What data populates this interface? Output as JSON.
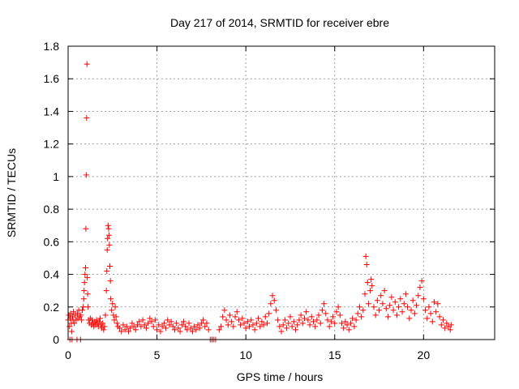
{
  "chart_data": {
    "type": "scatter",
    "title": "Day 217 of 2014, SRMTID for receiver ebre",
    "xlabel": "GPS time / hours",
    "ylabel": "SRMTID / TECUs",
    "xlim": [
      0,
      24
    ],
    "ylim": [
      0,
      1.8
    ],
    "xticks": [
      0,
      5,
      10,
      15,
      20
    ],
    "xtick_labels": [
      "0",
      "5",
      "10",
      "15",
      "20"
    ],
    "yticks": [
      0,
      0.2,
      0.4,
      0.6,
      0.8,
      1,
      1.2,
      1.4,
      1.6,
      1.8
    ],
    "ytick_labels": [
      "0",
      "0.2",
      "0.4",
      "0.6",
      "0.8",
      "1",
      "1.2",
      "1.4",
      "1.6",
      "1.8"
    ],
    "grid": true,
    "marker": "+",
    "marker_color": "#ff0000",
    "series": [
      {
        "name": "SRMTID",
        "points": [
          [
            0.0,
            0.12
          ],
          [
            0.05,
            0.15
          ],
          [
            0.08,
            0.08
          ],
          [
            0.1,
            0.0
          ],
          [
            0.12,
            0.13
          ],
          [
            0.15,
            0.16
          ],
          [
            0.18,
            0.1
          ],
          [
            0.2,
            0.05
          ],
          [
            0.22,
            0.0
          ],
          [
            0.25,
            0.14
          ],
          [
            0.28,
            0.12
          ],
          [
            0.3,
            0.17
          ],
          [
            0.35,
            0.1
          ],
          [
            0.4,
            0.15
          ],
          [
            0.45,
            0.12
          ],
          [
            0.5,
            0.0
          ],
          [
            0.52,
            0.16
          ],
          [
            0.55,
            0.13
          ],
          [
            0.6,
            0.18
          ],
          [
            0.65,
            0.14
          ],
          [
            0.7,
            0.0
          ],
          [
            0.72,
            0.15
          ],
          [
            0.75,
            0.12
          ],
          [
            0.8,
            0.18
          ],
          [
            0.85,
            0.2
          ],
          [
            0.88,
            0.25
          ],
          [
            0.9,
            0.3
          ],
          [
            0.92,
            0.35
          ],
          [
            0.95,
            0.4
          ],
          [
            0.98,
            0.44
          ],
          [
            1.0,
            0.68
          ],
          [
            1.02,
            1.01
          ],
          [
            1.04,
            1.36
          ],
          [
            1.06,
            1.69
          ],
          [
            1.08,
            0.38
          ],
          [
            1.1,
            0.28
          ],
          [
            1.12,
            0.2
          ],
          [
            1.15,
            0.12
          ],
          [
            1.2,
            0.1
          ],
          [
            1.25,
            0.13
          ],
          [
            1.3,
            0.09
          ],
          [
            1.35,
            0.12
          ],
          [
            1.4,
            0.1
          ],
          [
            1.45,
            0.08
          ],
          [
            1.5,
            0.11
          ],
          [
            1.55,
            0.09
          ],
          [
            1.6,
            0.12
          ],
          [
            1.65,
            0.1
          ],
          [
            1.7,
            0.08
          ],
          [
            1.75,
            0.11
          ],
          [
            1.8,
            0.13
          ],
          [
            1.85,
            0.09
          ],
          [
            1.9,
            0.07
          ],
          [
            1.95,
            0.1
          ],
          [
            2.0,
            0.06
          ],
          [
            2.05,
            0.08
          ],
          [
            2.1,
            0.15
          ],
          [
            2.15,
            0.3
          ],
          [
            2.18,
            0.42
          ],
          [
            2.2,
            0.55
          ],
          [
            2.22,
            0.62
          ],
          [
            2.25,
            0.7
          ],
          [
            2.28,
            0.68
          ],
          [
            2.3,
            0.64
          ],
          [
            2.32,
            0.58
          ],
          [
            2.35,
            0.45
          ],
          [
            2.38,
            0.36
          ],
          [
            2.4,
            0.25
          ],
          [
            2.45,
            0.18
          ],
          [
            2.5,
            0.22
          ],
          [
            2.55,
            0.15
          ],
          [
            2.6,
            0.12
          ],
          [
            2.65,
            0.2
          ],
          [
            2.7,
            0.14
          ],
          [
            2.75,
            0.1
          ],
          [
            2.8,
            0.08
          ],
          [
            2.9,
            0.07
          ],
          [
            3.0,
            0.05
          ],
          [
            3.1,
            0.09
          ],
          [
            3.2,
            0.06
          ],
          [
            3.3,
            0.08
          ],
          [
            3.4,
            0.05
          ],
          [
            3.5,
            0.07
          ],
          [
            3.6,
            0.1
          ],
          [
            3.7,
            0.08
          ],
          [
            3.8,
            0.06
          ],
          [
            3.9,
            0.09
          ],
          [
            4.0,
            0.11
          ],
          [
            4.1,
            0.08
          ],
          [
            4.2,
            0.12
          ],
          [
            4.3,
            0.09
          ],
          [
            4.4,
            0.07
          ],
          [
            4.5,
            0.1
          ],
          [
            4.6,
            0.13
          ],
          [
            4.7,
            0.11
          ],
          [
            4.8,
            0.08
          ],
          [
            4.9,
            0.12
          ],
          [
            5.0,
            0.06
          ],
          [
            5.1,
            0.09
          ],
          [
            5.2,
            0.05
          ],
          [
            5.3,
            0.08
          ],
          [
            5.4,
            0.1
          ],
          [
            5.5,
            0.07
          ],
          [
            5.6,
            0.12
          ],
          [
            5.7,
            0.09
          ],
          [
            5.8,
            0.11
          ],
          [
            5.9,
            0.08
          ],
          [
            6.0,
            0.06
          ],
          [
            6.1,
            0.1
          ],
          [
            6.2,
            0.07
          ],
          [
            6.3,
            0.05
          ],
          [
            6.4,
            0.09
          ],
          [
            6.5,
            0.11
          ],
          [
            6.6,
            0.08
          ],
          [
            6.7,
            0.06
          ],
          [
            6.8,
            0.1
          ],
          [
            6.9,
            0.07
          ],
          [
            7.0,
            0.05
          ],
          [
            7.1,
            0.08
          ],
          [
            7.2,
            0.06
          ],
          [
            7.3,
            0.09
          ],
          [
            7.4,
            0.07
          ],
          [
            7.5,
            0.1
          ],
          [
            7.6,
            0.12
          ],
          [
            7.7,
            0.08
          ],
          [
            7.8,
            0.1
          ],
          [
            7.9,
            0.06
          ],
          [
            8.0,
            0.0
          ],
          [
            8.1,
            0.0
          ],
          [
            8.2,
            0.0
          ],
          [
            8.3,
            0.0
          ],
          [
            8.5,
            0.06
          ],
          [
            8.6,
            0.08
          ],
          [
            8.7,
            0.14
          ],
          [
            8.8,
            0.18
          ],
          [
            8.9,
            0.12
          ],
          [
            9.0,
            0.09
          ],
          [
            9.1,
            0.15
          ],
          [
            9.2,
            0.11
          ],
          [
            9.3,
            0.08
          ],
          [
            9.4,
            0.14
          ],
          [
            9.5,
            0.17
          ],
          [
            9.6,
            0.12
          ],
          [
            9.7,
            0.09
          ],
          [
            9.8,
            0.13
          ],
          [
            9.9,
            0.1
          ],
          [
            10.0,
            0.07
          ],
          [
            10.1,
            0.11
          ],
          [
            10.2,
            0.08
          ],
          [
            10.3,
            0.12
          ],
          [
            10.4,
            0.09
          ],
          [
            10.5,
            0.06
          ],
          [
            10.6,
            0.1
          ],
          [
            10.7,
            0.13
          ],
          [
            10.8,
            0.08
          ],
          [
            10.9,
            0.11
          ],
          [
            11.0,
            0.09
          ],
          [
            11.1,
            0.14
          ],
          [
            11.2,
            0.1
          ],
          [
            11.3,
            0.16
          ],
          [
            11.4,
            0.22
          ],
          [
            11.5,
            0.27
          ],
          [
            11.6,
            0.24
          ],
          [
            11.7,
            0.18
          ],
          [
            11.8,
            0.12
          ],
          [
            11.9,
            0.08
          ],
          [
            12.0,
            0.05
          ],
          [
            12.1,
            0.09
          ],
          [
            12.2,
            0.12
          ],
          [
            12.3,
            0.07
          ],
          [
            12.4,
            0.1
          ],
          [
            12.5,
            0.14
          ],
          [
            12.6,
            0.08
          ],
          [
            12.7,
            0.11
          ],
          [
            12.8,
            0.06
          ],
          [
            12.9,
            0.09
          ],
          [
            13.0,
            0.12
          ],
          [
            13.1,
            0.15
          ],
          [
            13.2,
            0.1
          ],
          [
            13.3,
            0.13
          ],
          [
            13.4,
            0.17
          ],
          [
            13.5,
            0.12
          ],
          [
            13.6,
            0.09
          ],
          [
            13.7,
            0.14
          ],
          [
            13.8,
            0.11
          ],
          [
            13.9,
            0.08
          ],
          [
            14.0,
            0.12
          ],
          [
            14.1,
            0.15
          ],
          [
            14.2,
            0.1
          ],
          [
            14.3,
            0.18
          ],
          [
            14.4,
            0.22
          ],
          [
            14.5,
            0.16
          ],
          [
            14.6,
            0.12
          ],
          [
            14.7,
            0.08
          ],
          [
            14.8,
            0.11
          ],
          [
            14.9,
            0.14
          ],
          [
            15.0,
            0.1
          ],
          [
            15.1,
            0.17
          ],
          [
            15.2,
            0.2
          ],
          [
            15.3,
            0.15
          ],
          [
            15.4,
            0.1
          ],
          [
            15.5,
            0.07
          ],
          [
            15.6,
            0.11
          ],
          [
            15.7,
            0.09
          ],
          [
            15.8,
            0.06
          ],
          [
            15.9,
            0.1
          ],
          [
            16.0,
            0.13
          ],
          [
            16.1,
            0.08
          ],
          [
            16.2,
            0.12
          ],
          [
            16.3,
            0.16
          ],
          [
            16.4,
            0.2
          ],
          [
            16.5,
            0.14
          ],
          [
            16.6,
            0.18
          ],
          [
            16.7,
            0.28
          ],
          [
            16.75,
            0.51
          ],
          [
            16.8,
            0.46
          ],
          [
            16.85,
            0.35
          ],
          [
            16.9,
            0.22
          ],
          [
            17.0,
            0.3
          ],
          [
            17.05,
            0.37
          ],
          [
            17.1,
            0.33
          ],
          [
            17.2,
            0.2
          ],
          [
            17.3,
            0.15
          ],
          [
            17.4,
            0.24
          ],
          [
            17.5,
            0.18
          ],
          [
            17.6,
            0.27
          ],
          [
            17.7,
            0.22
          ],
          [
            17.8,
            0.3
          ],
          [
            17.9,
            0.19
          ],
          [
            18.0,
            0.14
          ],
          [
            18.1,
            0.21
          ],
          [
            18.2,
            0.26
          ],
          [
            18.3,
            0.18
          ],
          [
            18.4,
            0.23
          ],
          [
            18.5,
            0.15
          ],
          [
            18.6,
            0.2
          ],
          [
            18.7,
            0.25
          ],
          [
            18.8,
            0.17
          ],
          [
            18.9,
            0.22
          ],
          [
            19.0,
            0.28
          ],
          [
            19.1,
            0.2
          ],
          [
            19.2,
            0.13
          ],
          [
            19.3,
            0.18
          ],
          [
            19.4,
            0.24
          ],
          [
            19.5,
            0.16
          ],
          [
            19.6,
            0.21
          ],
          [
            19.7,
            0.27
          ],
          [
            19.8,
            0.32
          ],
          [
            19.9,
            0.36
          ],
          [
            20.0,
            0.25
          ],
          [
            20.1,
            0.18
          ],
          [
            20.2,
            0.13
          ],
          [
            20.3,
            0.2
          ],
          [
            20.4,
            0.16
          ],
          [
            20.5,
            0.11
          ],
          [
            20.6,
            0.23
          ],
          [
            20.7,
            0.17
          ],
          [
            20.8,
            0.22
          ],
          [
            20.9,
            0.14
          ],
          [
            21.0,
            0.09
          ],
          [
            21.1,
            0.12
          ],
          [
            21.2,
            0.07
          ],
          [
            21.3,
            0.1
          ],
          [
            21.4,
            0.08
          ],
          [
            21.5,
            0.06
          ],
          [
            21.55,
            0.09
          ]
        ]
      }
    ]
  }
}
